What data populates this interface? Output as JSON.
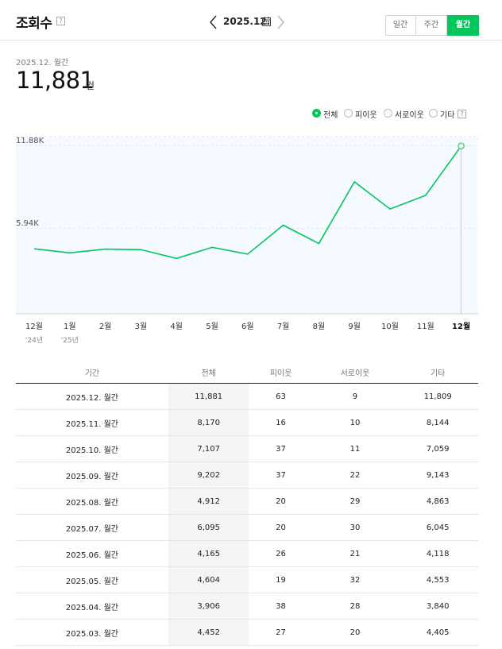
{
  "header": {
    "title": "조회수",
    "help": "?",
    "current_period": "2025.12."
  },
  "period_tabs": [
    {
      "label": "일간",
      "active": false
    },
    {
      "label": "주간",
      "active": false
    },
    {
      "label": "월간",
      "active": true
    }
  ],
  "summary": {
    "period": "2025.12. 월간",
    "value": "11,881",
    "unit": "건"
  },
  "legend": {
    "items": [
      {
        "label": "전체",
        "selected": true
      },
      {
        "label": "피이웃",
        "selected": false
      },
      {
        "label": "서로이웃",
        "selected": false
      },
      {
        "label": "기타",
        "selected": false
      }
    ],
    "help": "?"
  },
  "colors": {
    "accent": "#03c75a",
    "plot_bg": "#f4faff",
    "text": "#222222"
  },
  "chart_data": {
    "type": "line",
    "categories": [
      "12월",
      "1월",
      "2월",
      "3월",
      "4월",
      "5월",
      "6월",
      "7월",
      "8월",
      "9월",
      "10월",
      "11월",
      "12월"
    ],
    "year_labels": [
      "'24년",
      "'25년",
      "",
      "",
      "",
      "",
      "",
      "",
      "",
      "",
      "",
      "",
      ""
    ],
    "series": [
      {
        "values": [
          7630,
          7150,
          7600,
          7530,
          6500,
          7800,
          7000,
          10400,
          8250,
          15500,
          12300,
          13900,
          19700
        ]
      }
    ],
    "y_ticks": [
      {
        "label": "11.88K",
        "value": 19700
      },
      {
        "label": "5.94K",
        "value": 10000
      }
    ],
    "ylim": [
      0,
      20800
    ],
    "highlight_index": 12,
    "grid": "dashed horizontal"
  },
  "table": {
    "headers": [
      "기간",
      "전체",
      "피이웃",
      "서로이웃",
      "기타"
    ],
    "rows": [
      [
        "2025.12. 월간",
        "11,881",
        "63",
        "9",
        "11,809"
      ],
      [
        "2025.11. 월간",
        "8,170",
        "16",
        "10",
        "8,144"
      ],
      [
        "2025.10. 월간",
        "7,107",
        "37",
        "11",
        "7,059"
      ],
      [
        "2025.09. 월간",
        "9,202",
        "37",
        "22",
        "9,143"
      ],
      [
        "2025.08. 월간",
        "4,912",
        "20",
        "29",
        "4,863"
      ],
      [
        "2025.07. 월간",
        "6,095",
        "20",
        "30",
        "6,045"
      ],
      [
        "2025.06. 월간",
        "4,165",
        "26",
        "21",
        "4,118"
      ],
      [
        "2025.05. 월간",
        "4,604",
        "19",
        "32",
        "4,553"
      ],
      [
        "2025.04. 월간",
        "3,906",
        "38",
        "28",
        "3,840"
      ],
      [
        "2025.03. 월간",
        "4,452",
        "27",
        "20",
        "4,405"
      ]
    ]
  }
}
